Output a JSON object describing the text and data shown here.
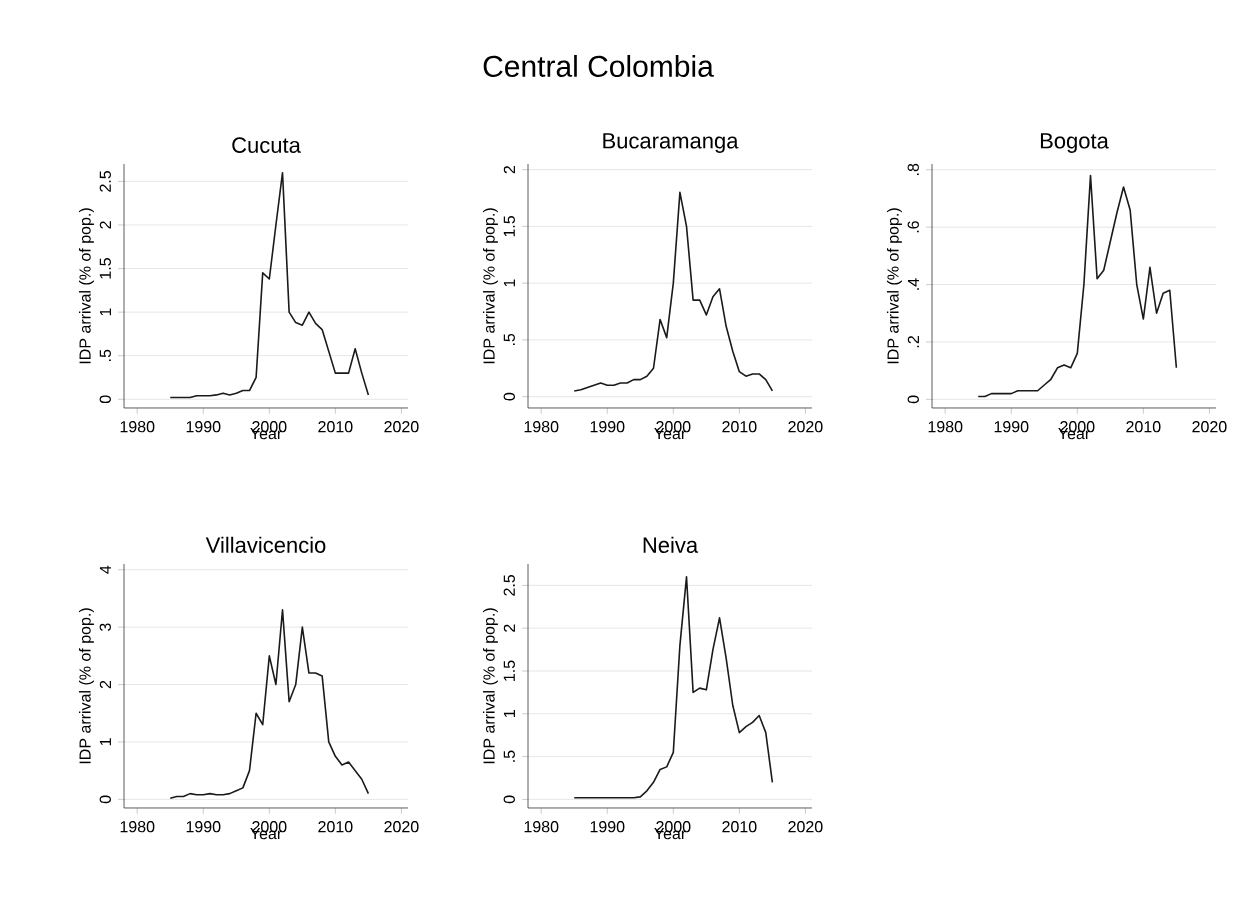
{
  "chart_data": [
    {
      "type": "line",
      "title": "Cucuta",
      "xlabel": "Year",
      "ylabel": "IDP arrival (% of pop.)",
      "annotations": [
        "Central Colombia"
      ],
      "grid": "y",
      "color": "#1a1a1a",
      "xlim": [
        1978,
        2021
      ],
      "xticks": [
        1980,
        1990,
        2000,
        2010,
        2020
      ],
      "ylim": [
        -0.1,
        2.7
      ],
      "yticks": [
        0,
        {
          "value": 0.5,
          "label": ".5"
        },
        1,
        1.5,
        2,
        2.5
      ],
      "x": [
        1985,
        1986,
        1987,
        1988,
        1989,
        1990,
        1991,
        1992,
        1993,
        1994,
        1995,
        1996,
        1997,
        1998,
        1999,
        2000,
        2001,
        2002,
        2003,
        2004,
        2005,
        2006,
        2007,
        2008,
        2009,
        2010,
        2011,
        2012,
        2013,
        2014,
        2015
      ],
      "values": [
        0.02,
        0.02,
        0.02,
        0.02,
        0.04,
        0.04,
        0.04,
        0.05,
        0.07,
        0.05,
        0.07,
        0.1,
        0.1,
        0.25,
        1.45,
        1.38,
        2.0,
        2.6,
        1.0,
        0.88,
        0.85,
        1.0,
        0.87,
        0.8,
        0.55,
        0.3,
        0.3,
        0.3,
        0.58,
        0.3,
        0.05
      ]
    },
    {
      "type": "line",
      "title": "Bucaramanga",
      "xlabel": "Year",
      "ylabel": "IDP arrival (% of pop.)",
      "grid": "y",
      "color": "#1a1a1a",
      "xlim": [
        1978,
        2021
      ],
      "xticks": [
        1980,
        1990,
        2000,
        2010,
        2020
      ],
      "ylim": [
        -0.1,
        2.05
      ],
      "yticks": [
        0,
        {
          "value": 0.5,
          "label": ".5"
        },
        1,
        1.5,
        2
      ],
      "x": [
        1985,
        1986,
        1987,
        1988,
        1989,
        1990,
        1991,
        1992,
        1993,
        1994,
        1995,
        1996,
        1997,
        1998,
        1999,
        2000,
        2001,
        2002,
        2003,
        2004,
        2005,
        2006,
        2007,
        2008,
        2009,
        2010,
        2011,
        2012,
        2013,
        2014,
        2015
      ],
      "values": [
        0.05,
        0.06,
        0.08,
        0.1,
        0.12,
        0.1,
        0.1,
        0.12,
        0.12,
        0.15,
        0.15,
        0.18,
        0.25,
        0.68,
        0.52,
        1.0,
        1.8,
        1.5,
        0.85,
        0.85,
        0.72,
        0.88,
        0.95,
        0.62,
        0.4,
        0.22,
        0.18,
        0.2,
        0.2,
        0.15,
        0.05
      ]
    },
    {
      "type": "line",
      "title": "Bogota",
      "xlabel": "Year",
      "ylabel": "IDP arrival (% of pop.)",
      "grid": "y",
      "color": "#1a1a1a",
      "xlim": [
        1978,
        2021
      ],
      "xticks": [
        1980,
        1990,
        2000,
        2010,
        2020
      ],
      "ylim": [
        -0.03,
        0.82
      ],
      "yticks": [
        0,
        {
          "value": 0.2,
          "label": ".2"
        },
        {
          "value": 0.4,
          "label": ".4"
        },
        {
          "value": 0.6,
          "label": ".6"
        },
        {
          "value": 0.8,
          "label": ".8"
        }
      ],
      "x": [
        1985,
        1986,
        1987,
        1988,
        1989,
        1990,
        1991,
        1992,
        1993,
        1994,
        1995,
        1996,
        1997,
        1998,
        1999,
        2000,
        2001,
        2002,
        2003,
        2004,
        2005,
        2006,
        2007,
        2008,
        2009,
        2010,
        2011,
        2012,
        2013,
        2014,
        2015
      ],
      "values": [
        0.01,
        0.01,
        0.02,
        0.02,
        0.02,
        0.02,
        0.03,
        0.03,
        0.03,
        0.03,
        0.05,
        0.07,
        0.11,
        0.12,
        0.11,
        0.16,
        0.4,
        0.78,
        0.42,
        0.45,
        0.55,
        0.65,
        0.74,
        0.66,
        0.4,
        0.28,
        0.46,
        0.3,
        0.37,
        0.38,
        0.11
      ]
    },
    {
      "type": "line",
      "title": "Villavicencio",
      "xlabel": "Year",
      "ylabel": "IDP arrival (% of pop.)",
      "grid": "y",
      "color": "#1a1a1a",
      "xlim": [
        1978,
        2021
      ],
      "xticks": [
        1980,
        1990,
        2000,
        2010,
        2020
      ],
      "ylim": [
        -0.15,
        4.1
      ],
      "yticks": [
        0,
        1,
        2,
        3,
        4
      ],
      "x": [
        1985,
        1986,
        1987,
        1988,
        1989,
        1990,
        1991,
        1992,
        1993,
        1994,
        1995,
        1996,
        1997,
        1998,
        1999,
        2000,
        2001,
        2002,
        2003,
        2004,
        2005,
        2006,
        2007,
        2008,
        2009,
        2010,
        2011,
        2012,
        2013,
        2014,
        2015
      ],
      "values": [
        0.02,
        0.05,
        0.05,
        0.1,
        0.08,
        0.08,
        0.1,
        0.08,
        0.08,
        0.1,
        0.15,
        0.2,
        0.5,
        1.5,
        1.3,
        2.5,
        2.0,
        3.3,
        1.7,
        2.0,
        3.0,
        2.2,
        2.2,
        2.15,
        1.0,
        0.75,
        0.6,
        0.65,
        0.5,
        0.35,
        0.1
      ]
    },
    {
      "type": "line",
      "title": "Neiva",
      "xlabel": "Year",
      "ylabel": "IDP arrival (% of pop.)",
      "grid": "y",
      "color": "#1a1a1a",
      "xlim": [
        1978,
        2021
      ],
      "xticks": [
        1980,
        1990,
        2000,
        2010,
        2020
      ],
      "ylim": [
        -0.1,
        2.75
      ],
      "yticks": [
        0,
        {
          "value": 0.5,
          "label": ".5"
        },
        1,
        1.5,
        2,
        2.5
      ],
      "x": [
        1985,
        1986,
        1987,
        1988,
        1989,
        1990,
        1991,
        1992,
        1993,
        1994,
        1995,
        1996,
        1997,
        1998,
        1999,
        2000,
        2001,
        2002,
        2003,
        2004,
        2005,
        2006,
        2007,
        2008,
        2009,
        2010,
        2011,
        2012,
        2013,
        2014,
        2015
      ],
      "values": [
        0.02,
        0.02,
        0.02,
        0.02,
        0.02,
        0.02,
        0.02,
        0.02,
        0.02,
        0.02,
        0.03,
        0.1,
        0.2,
        0.35,
        0.38,
        0.55,
        1.8,
        2.6,
        1.25,
        1.3,
        1.28,
        1.75,
        2.12,
        1.65,
        1.1,
        0.78,
        0.85,
        0.9,
        0.98,
        0.78,
        0.2
      ]
    }
  ]
}
